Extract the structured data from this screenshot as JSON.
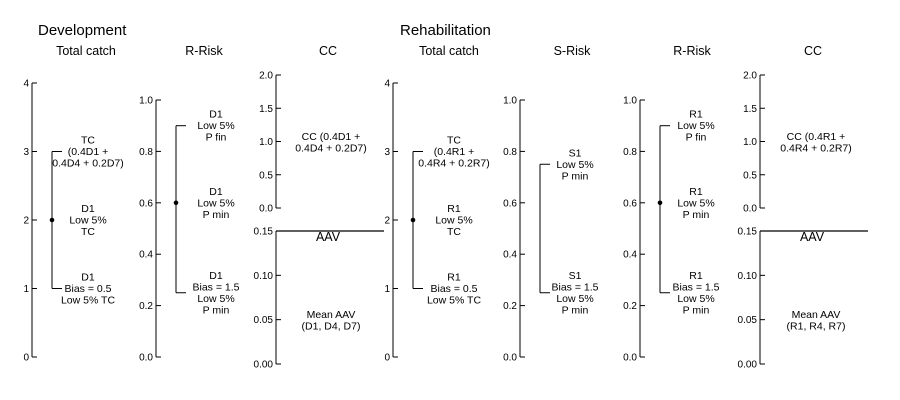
{
  "headings": {
    "development": "Development",
    "rehabilitation": "Rehabilitation"
  },
  "panels": [
    {
      "id": "dev-tc",
      "title": "Total catch",
      "ticks": [
        "0",
        "1",
        "2",
        "3",
        "4"
      ],
      "segments": [
        {
          "from": 1,
          "to": 3,
          "mid": 2
        }
      ],
      "labels": [
        {
          "v": 3,
          "lines": [
            "TC",
            "(0.4D1 +",
            "0.4D4 + 0.2D7)"
          ]
        },
        {
          "v": 2,
          "lines": [
            "D1",
            "Low 5%",
            "TC"
          ]
        },
        {
          "v": 1,
          "lines": [
            "D1",
            "Bias = 0.5",
            "Low 5% TC"
          ]
        }
      ]
    },
    {
      "id": "dev-rrisk",
      "title": "R-Risk",
      "ticks": [
        "0.0",
        "0.2",
        "0.4",
        "0.6",
        "0.8",
        "1.0"
      ],
      "segments": [
        {
          "from": 0.25,
          "to": 0.9,
          "mid": 0.6
        }
      ],
      "labels": [
        {
          "v": 0.9,
          "lines": [
            "D1",
            "Low 5%",
            "P fin"
          ]
        },
        {
          "v": 0.6,
          "lines": [
            "D1",
            "Low 5%",
            "P min"
          ]
        },
        {
          "v": 0.25,
          "lines": [
            "D1",
            "Bias = 1.5",
            "Low 5%",
            "P min"
          ]
        }
      ]
    },
    {
      "id": "dev-cc",
      "title": "CC",
      "cc": {
        "ticks": [
          "0.0",
          "0.5",
          "1.0",
          "1.5",
          "2.0"
        ],
        "label": [
          "CC (0.4D1 +",
          "0.4D4 + 0.2D7)"
        ]
      },
      "aav": {
        "ticks": [
          "0.00",
          "0.05",
          "0.10",
          "0.15"
        ],
        "label": "AAV",
        "mean": [
          "Mean AAV",
          "(D1, D4, D7)"
        ]
      }
    },
    {
      "id": "reh-tc",
      "title": "Total catch",
      "ticks": [
        "0",
        "1",
        "2",
        "3",
        "4"
      ],
      "segments": [
        {
          "from": 1,
          "to": 3,
          "mid": 2
        }
      ],
      "labels": [
        {
          "v": 3,
          "lines": [
            "TC",
            "(0.4R1 +",
            "0.4R4 + 0.2R7)"
          ]
        },
        {
          "v": 2,
          "lines": [
            "R1",
            "Low 5%",
            "TC"
          ]
        },
        {
          "v": 1,
          "lines": [
            "R1",
            "Bias = 0.5",
            "Low 5% TC"
          ]
        }
      ]
    },
    {
      "id": "reh-srisk",
      "title": "S-Risk",
      "ticks": [
        "0.0",
        "0.2",
        "0.4",
        "0.6",
        "0.8",
        "1.0"
      ],
      "segments": [
        {
          "from": 0.25,
          "to": 0.75
        }
      ],
      "labels": [
        {
          "v": 0.75,
          "lines": [
            "S1",
            "Low 5%",
            "P min"
          ]
        },
        {
          "v": 0.25,
          "lines": [
            "S1",
            "Bias = 1.5",
            "Low 5%",
            "P min"
          ]
        }
      ]
    },
    {
      "id": "reh-rrisk",
      "title": "R-Risk",
      "ticks": [
        "0.0",
        "0.2",
        "0.4",
        "0.6",
        "0.8",
        "1.0"
      ],
      "segments": [
        {
          "from": 0.25,
          "to": 0.9,
          "mid": 0.6
        }
      ],
      "labels": [
        {
          "v": 0.9,
          "lines": [
            "R1",
            "Low 5%",
            "P fin"
          ]
        },
        {
          "v": 0.6,
          "lines": [
            "R1",
            "Low 5%",
            "P min"
          ]
        },
        {
          "v": 0.25,
          "lines": [
            "R1",
            "Bias = 1.5",
            "Low 5%",
            "P min"
          ]
        }
      ]
    },
    {
      "id": "reh-cc",
      "title": "CC",
      "cc": {
        "ticks": [
          "0.0",
          "0.5",
          "1.0",
          "1.5",
          "2.0"
        ],
        "label": [
          "CC (0.4R1 +",
          "0.4R4 + 0.2R7)"
        ]
      },
      "aav": {
        "ticks": [
          "0.00",
          "0.05",
          "0.10",
          "0.15"
        ],
        "label": "AAV",
        "mean": [
          "Mean AAV",
          "(R1, R4, R7)"
        ]
      }
    }
  ]
}
